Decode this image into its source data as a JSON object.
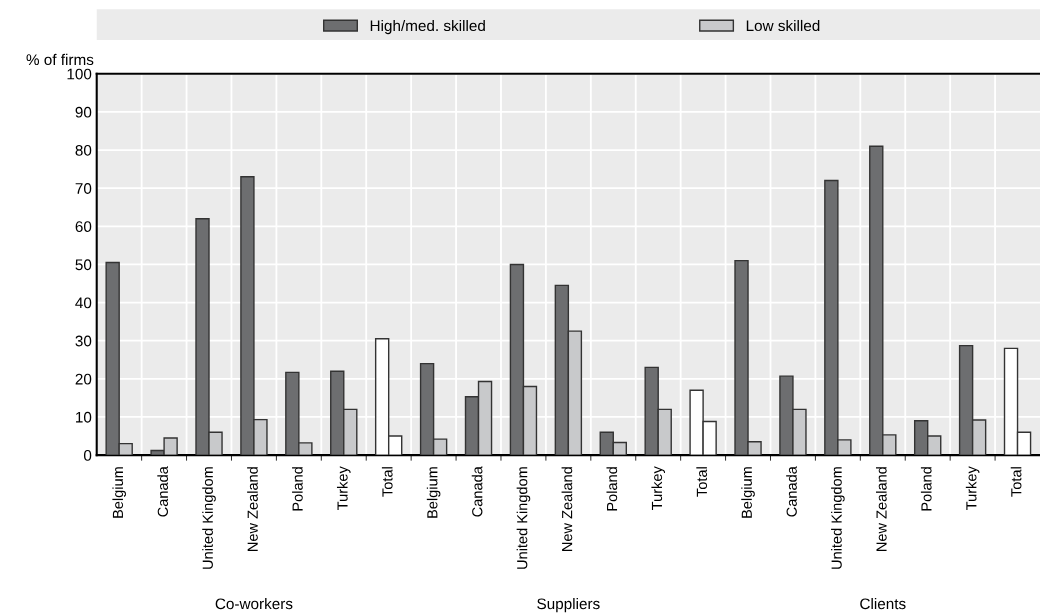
{
  "chart_data": {
    "type": "bar",
    "ylabel": "% of firms",
    "categories": [
      "Belgium",
      "Canada",
      "United Kingdom",
      "New Zealand",
      "Poland",
      "Turkey",
      "Total",
      "Belgium",
      "Canada",
      "United Kingdom",
      "New Zealand",
      "Poland",
      "Turkey",
      "Total",
      "Belgium",
      "Canada",
      "United Kingdom",
      "New Zealand",
      "Poland",
      "Turkey",
      "Total"
    ],
    "series": [
      {
        "name": "High/med. skilled",
        "color": "#6d6e70",
        "colors": [
          "#6d6e70",
          "#6d6e70",
          "#6d6e70",
          "#6d6e70",
          "#6d6e70",
          "#6d6e70",
          "#ffffff",
          "#6d6e70",
          "#6d6e70",
          "#6d6e70",
          "#6d6e70",
          "#6d6e70",
          "#6d6e70",
          "#ffffff",
          "#6d6e70",
          "#6d6e70",
          "#6d6e70",
          "#6d6e70",
          "#6d6e70",
          "#6d6e70",
          "#ffffff"
        ],
        "values": [
          50.5,
          1.2,
          62,
          73,
          21.7,
          22,
          30.5,
          24,
          15.3,
          50,
          44.5,
          6,
          23,
          17,
          51,
          20.7,
          72,
          81,
          9,
          28.7,
          28
        ]
      },
      {
        "name": "Low skilled",
        "color": "#c8c9cb",
        "colors": [
          "#c8c9cb",
          "#c8c9cb",
          "#c8c9cb",
          "#c8c9cb",
          "#c8c9cb",
          "#c8c9cb",
          "#ffffff",
          "#c8c9cb",
          "#c8c9cb",
          "#c8c9cb",
          "#c8c9cb",
          "#c8c9cb",
          "#c8c9cb",
          "#ffffff",
          "#c8c9cb",
          "#c8c9cb",
          "#c8c9cb",
          "#c8c9cb",
          "#c8c9cb",
          "#c8c9cb",
          "#ffffff"
        ],
        "values": [
          3,
          4.5,
          6,
          9.3,
          3.2,
          12,
          5,
          4.2,
          19.3,
          18,
          32.5,
          3.3,
          12,
          8.8,
          3.5,
          12,
          4,
          5.3,
          5,
          9.2,
          6
        ]
      }
    ],
    "annotations": [
      "Co-workers",
      "Suppliers",
      "Clients"
    ],
    "ylim": [
      0,
      100
    ],
    "yticks": [
      0,
      10,
      20,
      30,
      40,
      50,
      60,
      70,
      80,
      90,
      100
    ],
    "grid": true,
    "legend": "top"
  }
}
